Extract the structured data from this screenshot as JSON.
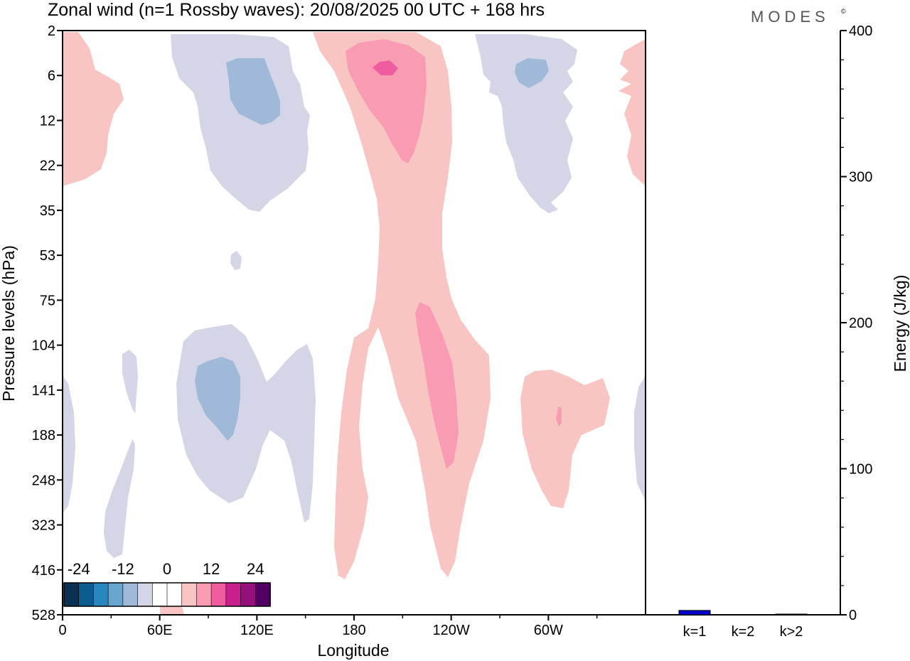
{
  "chart_data": {
    "type": "contour",
    "title": "Zonal wind (n=1 Rossby waves):  20/08/2025  00 UTC  + 168 hrs",
    "brand": "MODES",
    "brand_mark": "©",
    "xlabel": "Longitude",
    "ylabel": "Pressure levels (hPa)",
    "x_ticks": [
      "0",
      "60E",
      "120E",
      "180",
      "120W",
      "60W"
    ],
    "y_ticks": [
      "2",
      "6",
      "12",
      "22",
      "35",
      "53",
      "75",
      "104",
      "141",
      "188",
      "248",
      "323",
      "416",
      "528"
    ],
    "colorbar": {
      "tick_labels": [
        "-24",
        "-12",
        "0",
        "12",
        "24"
      ],
      "colors": [
        "#0b3050",
        "#0d5c8e",
        "#2a86bf",
        "#66a6cf",
        "#a1b9d8",
        "#d5d5e8",
        "#ffffff",
        "#ffffff",
        "#f9c5c3",
        "#f99bb3",
        "#ef5d9f",
        "#c71f8b",
        "#95107a",
        "#510062"
      ]
    },
    "energy_panel": {
      "type": "bar",
      "ylabel": "Energy (J/kg)",
      "ylim": [
        0,
        400
      ],
      "y_ticks": [
        "0",
        "100",
        "200",
        "300",
        "400"
      ],
      "categories": [
        "k=1",
        "k=2",
        "k>2"
      ],
      "values": [
        3,
        0,
        0.5
      ],
      "bar_color": "#0000cc"
    }
  }
}
